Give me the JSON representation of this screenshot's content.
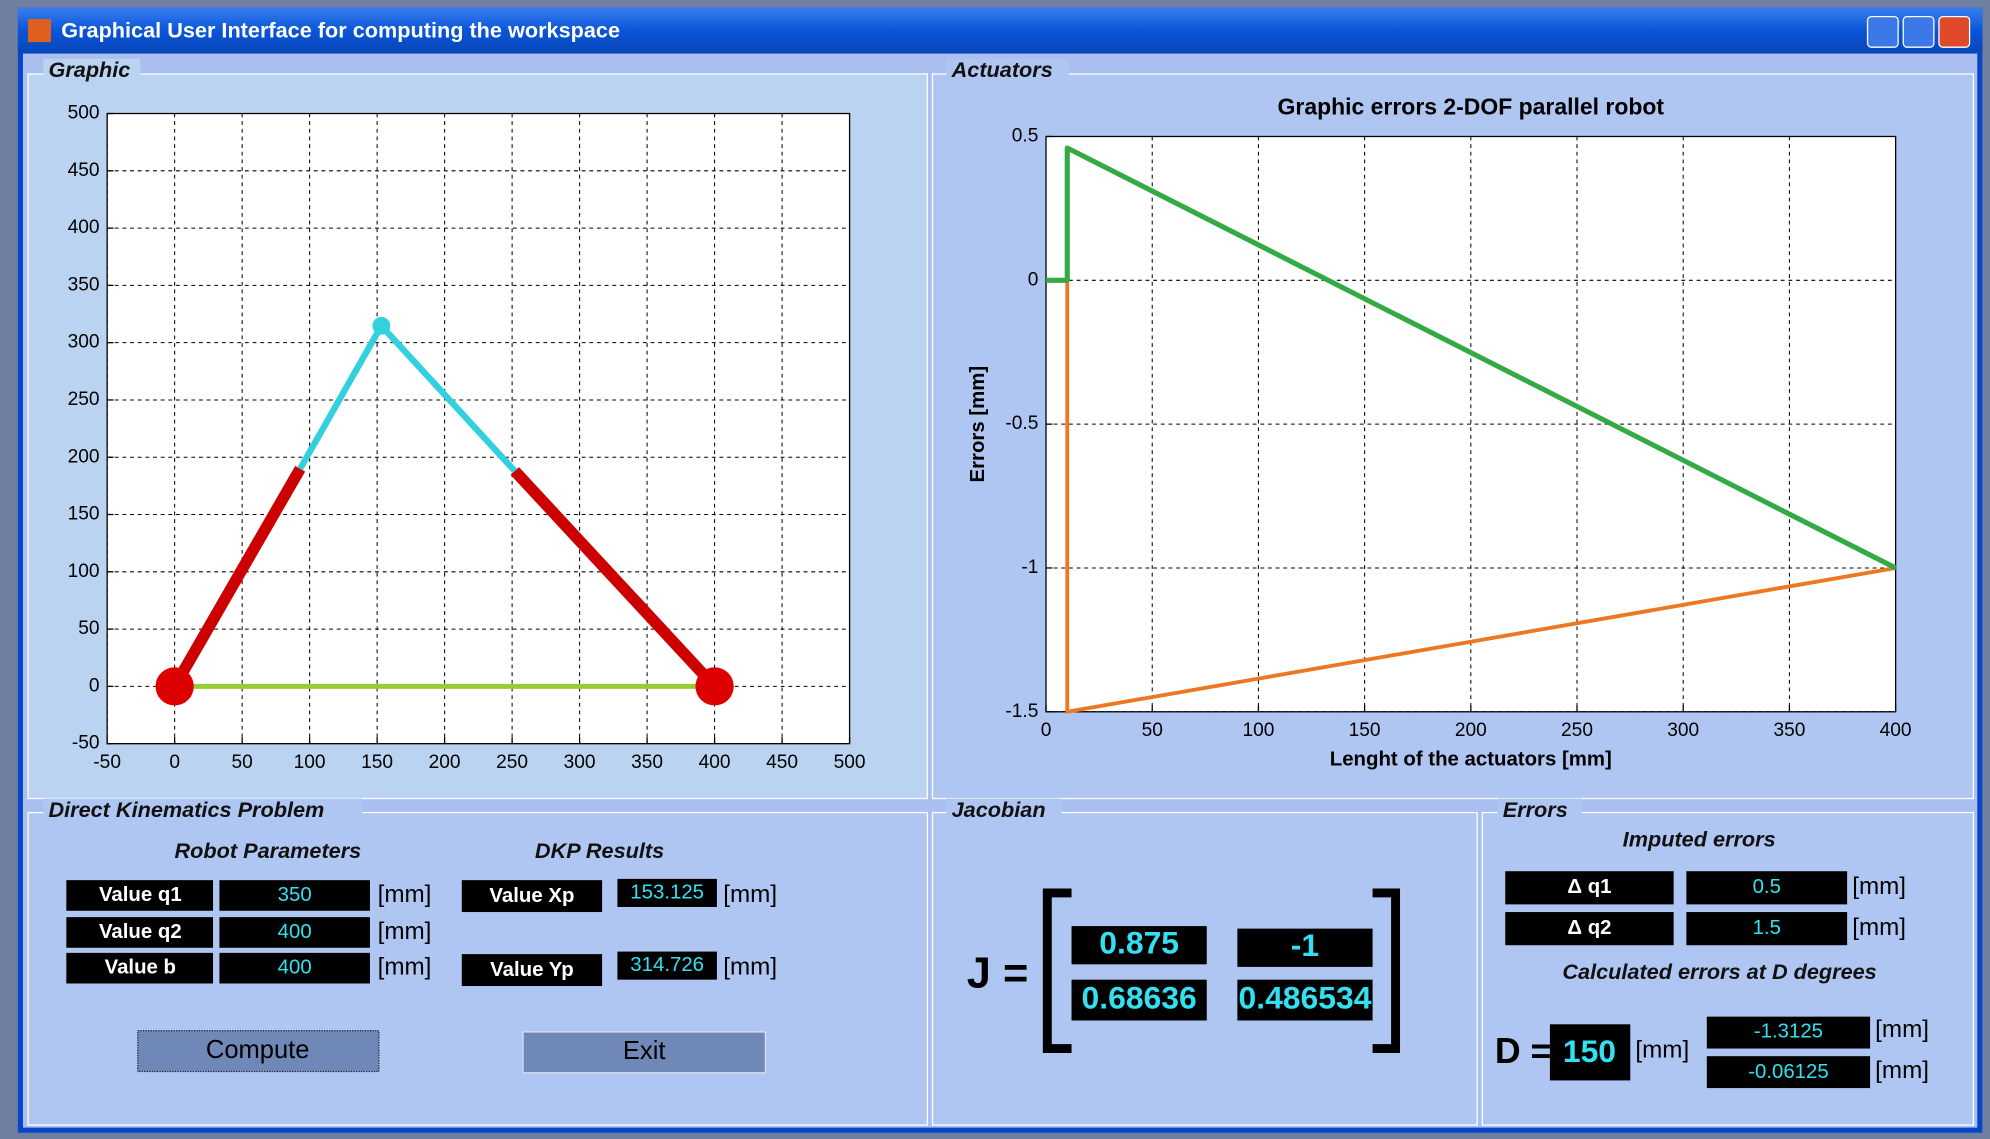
{
  "window": {
    "title": "Graphical User Interface for computing the workspace"
  },
  "panels": {
    "graphic": "Graphic",
    "actuators": "Actuators",
    "dkp": "Direct Kinematics Problem",
    "jacobian": "Jacobian",
    "errors": "Errors"
  },
  "chart_data": [
    {
      "type": "line",
      "xlim": [
        -50,
        500
      ],
      "ylim": [
        -50,
        500
      ],
      "xticks": [
        -50,
        0,
        50,
        100,
        150,
        200,
        250,
        300,
        350,
        400,
        450,
        500
      ],
      "yticks": [
        -50,
        0,
        50,
        100,
        150,
        200,
        250,
        300,
        350,
        400,
        450,
        500
      ],
      "grid": true,
      "series": [
        {
          "color": "#99cc33",
          "line_width": 4,
          "x": [
            0,
            400
          ],
          "values": [
            0,
            0
          ]
        },
        {
          "color": "#cc0000",
          "line_width": 9,
          "x": [
            0,
            93
          ],
          "values": [
            0,
            190
          ]
        },
        {
          "color": "#cc0000",
          "line_width": 9,
          "x": [
            252,
            400
          ],
          "values": [
            188,
            0
          ]
        },
        {
          "color": "#33d0e0",
          "line_width": 5,
          "x": [
            93,
            153.125,
            252
          ],
          "values": [
            190,
            314.726,
            188
          ]
        },
        {
          "color": "#dd0000",
          "marker": "circle",
          "marker_size": 15,
          "x": [
            0,
            400
          ],
          "values": [
            0,
            0
          ]
        },
        {
          "color": "#33d0e0",
          "marker": "circle",
          "marker_size": 7,
          "x": [
            153.125
          ],
          "values": [
            314.726
          ]
        }
      ]
    },
    {
      "type": "line",
      "title": "Graphic errors 2-DOF parallel robot",
      "xlabel": "Lenght of the actuators [mm]",
      "ylabel": "Errors [mm]",
      "xlim": [
        0,
        400
      ],
      "ylim": [
        -1.5,
        0.5
      ],
      "xticks": [
        0,
        50,
        100,
        150,
        200,
        250,
        300,
        350,
        400
      ],
      "yticks": [
        -1.5,
        -1,
        -0.5,
        0,
        0.5
      ],
      "grid": true,
      "series": [
        {
          "color": "#ee7722",
          "line_width": 3,
          "x": [
            10,
            10,
            400
          ],
          "values": [
            0,
            -1.5,
            -1
          ]
        },
        {
          "color": "#33aa44",
          "line_width": 4,
          "x": [
            0,
            10,
            10,
            400
          ],
          "values": [
            0,
            0,
            0.46,
            -1
          ]
        }
      ]
    }
  ],
  "dkp": {
    "parameters_heading": "Robot Parameters",
    "results_heading": "DKP Results",
    "parameters": [
      {
        "label": "Value q1",
        "value": 350,
        "unit": "[mm]"
      },
      {
        "label": "Value q2",
        "value": 400,
        "unit": "[mm]"
      },
      {
        "label": "Value b",
        "value": 400,
        "unit": "[mm]"
      }
    ],
    "results": [
      {
        "label": "Value Xp",
        "value": 153.125,
        "unit": "[mm]"
      },
      {
        "label": "Value Yp",
        "value": 314.726,
        "unit": "[mm]"
      }
    ],
    "buttons": [
      "Compute",
      "Exit"
    ]
  },
  "jacobian": {
    "symbol": "J =",
    "matrix": [
      [
        0.875,
        -1
      ],
      [
        0.68636,
        0.486534
      ]
    ]
  },
  "errors": {
    "imputed_heading": "Imputed errors",
    "imputed": [
      {
        "label": "Δ q1",
        "value": 0.5,
        "unit": "[mm]"
      },
      {
        "label": "Δ q2",
        "value": 1.5,
        "unit": "[mm]"
      }
    ],
    "calculated_heading": "Calculated errors at D degrees",
    "d_label": "D =",
    "d_value": 150,
    "d_unit": "[mm]",
    "calculated": [
      {
        "value": -1.3125,
        "unit": "[mm]"
      },
      {
        "value": -0.06125,
        "unit": "[mm]"
      }
    ]
  }
}
